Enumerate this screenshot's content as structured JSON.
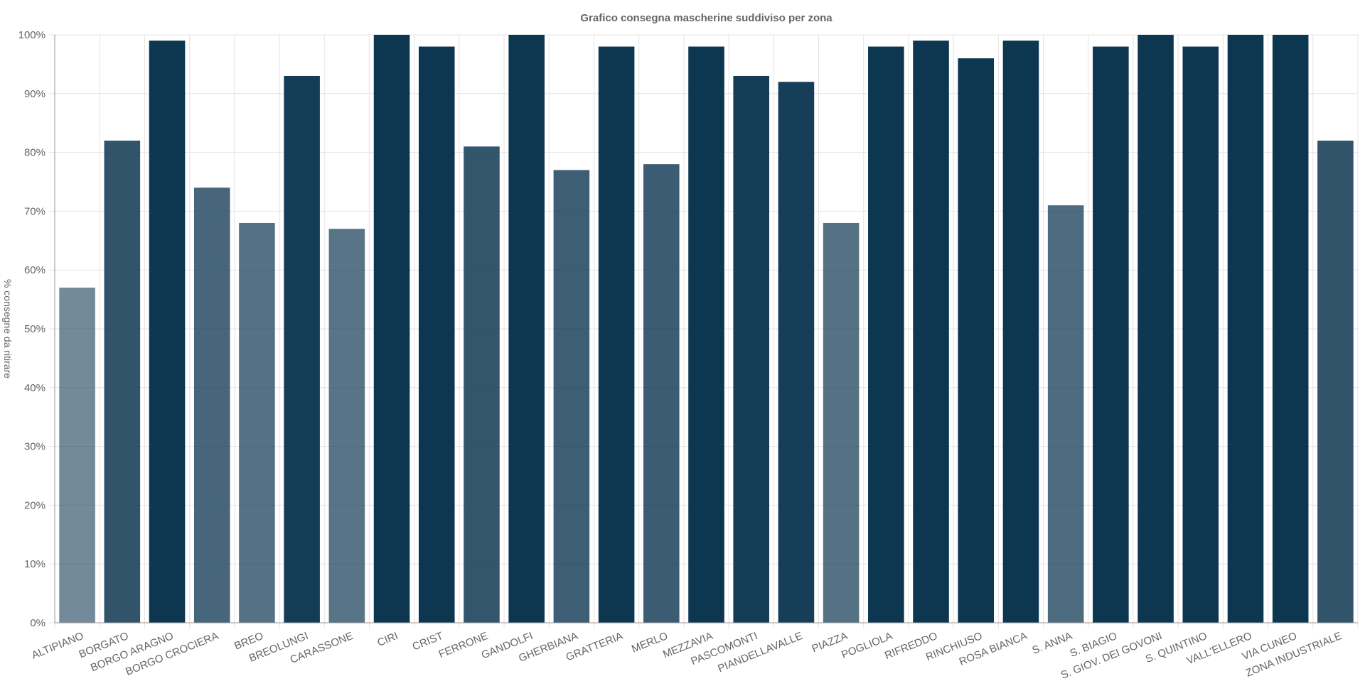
{
  "chart_data": {
    "type": "bar",
    "title": "Grafico consegna mascherine suddiviso per zona",
    "xlabel": "",
    "ylabel": "% consegne da ritirare",
    "ylim": [
      0,
      100
    ],
    "y_tick_values": [
      0,
      10,
      20,
      30,
      40,
      50,
      60,
      70,
      80,
      90,
      100
    ],
    "y_tick_labels": [
      "0%",
      "10%",
      "20%",
      "30%",
      "40%",
      "50%",
      "60%",
      "70%",
      "80%",
      "90%",
      "100%"
    ],
    "grid": true,
    "legend": "none",
    "categories": [
      "ALTIPIANO",
      "BORGATO",
      "BORGO ARAGNO",
      "BORGO CROCIERA",
      "BREO",
      "BREOLUNGI",
      "CARASSONE",
      "CIRI",
      "CRIST",
      "FERRONE",
      "GANDOLFI",
      "GHERBIANA",
      "GRATTERIA",
      "MERLO",
      "MEZZAVIA",
      "PASCOMONTI",
      "PIANDELLAVALLE",
      "PIAZZA",
      "POGLIOLA",
      "RIFREDDO",
      "RINCHIUSO",
      "ROSA BIANCA",
      "S. ANNA",
      "S. BIAGIO",
      "S. GIOV. DEI GOVONI",
      "S. QUINTINO",
      "VALL'ELLERO",
      "VIA CUNEO",
      "ZONA INDUSTRIALE"
    ],
    "values": [
      57,
      82,
      99,
      74,
      68,
      93,
      67,
      100,
      98,
      81,
      100,
      77,
      98,
      78,
      98,
      93,
      92,
      68,
      98,
      99,
      96,
      99,
      71,
      98,
      100,
      98,
      100,
      100,
      82
    ],
    "bar_color": "#0d3651"
  }
}
